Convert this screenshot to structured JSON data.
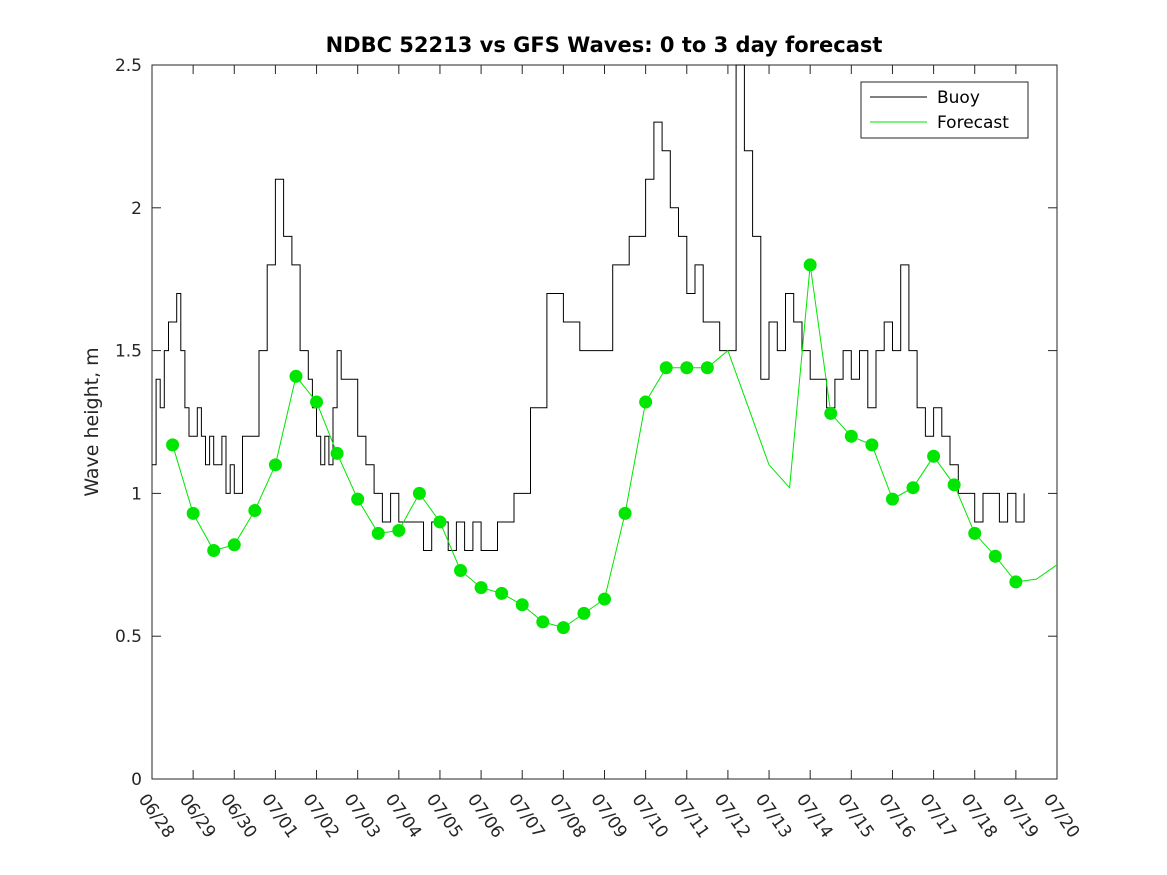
{
  "chart_data": {
    "type": "line",
    "title": "NDBC 52213 vs GFS Waves: 0 to 3 day forecast",
    "ylabel": "Wave height, m",
    "xlabel": "",
    "ylim": [
      0,
      2.5
    ],
    "xlim": [
      0,
      22
    ],
    "yticks": [
      0,
      0.5,
      1,
      1.5,
      2,
      2.5
    ],
    "ytick_labels": [
      "0",
      "0.5",
      "1",
      "1.5",
      "2",
      "2.5"
    ],
    "xtick_labels": [
      "06/28",
      "06/29",
      "06/30",
      "07/01",
      "07/02",
      "07/03",
      "07/04",
      "07/05",
      "07/06",
      "07/07",
      "07/08",
      "07/09",
      "07/10",
      "07/11",
      "07/12",
      "07/13",
      "07/14",
      "07/15",
      "07/16",
      "07/17",
      "07/18",
      "07/19",
      "07/20"
    ],
    "legend": {
      "position": "top-right",
      "entries": [
        {
          "label": "Buoy",
          "color": "#000000"
        },
        {
          "label": "Forecast",
          "color": "#00e600"
        }
      ]
    },
    "colors": {
      "buoy": "#000000",
      "forecast": "#00e600"
    },
    "series": [
      {
        "name": "Buoy",
        "x": [
          0,
          0.1,
          0.2,
          0.3,
          0.4,
          0.5,
          0.6,
          0.7,
          0.8,
          0.9,
          1.0,
          1.1,
          1.2,
          1.3,
          1.4,
          1.5,
          1.6,
          1.7,
          1.8,
          1.9,
          2.0,
          2.2,
          2.4,
          2.6,
          2.8,
          3.0,
          3.2,
          3.4,
          3.6,
          3.7,
          3.8,
          3.9,
          4.0,
          4.1,
          4.2,
          4.3,
          4.4,
          4.5,
          4.6,
          4.8,
          5.0,
          5.2,
          5.4,
          5.6,
          5.8,
          6.0,
          6.2,
          6.4,
          6.6,
          6.8,
          7.0,
          7.2,
          7.4,
          7.6,
          7.8,
          8.0,
          8.4,
          8.8,
          9.2,
          9.6,
          10.0,
          10.4,
          10.8,
          11.2,
          11.6,
          12.0,
          12.2,
          12.4,
          12.6,
          12.8,
          13.0,
          13.2,
          13.4,
          13.6,
          13.8,
          14.0,
          14.2,
          14.4,
          14.6,
          14.8,
          15.0,
          15.2,
          15.4,
          15.6,
          15.8,
          16.0,
          16.2,
          16.4,
          16.6,
          16.8,
          17.0,
          17.2,
          17.4,
          17.6,
          17.8,
          18.0,
          18.2,
          18.4,
          18.6,
          18.8,
          19.0,
          19.2,
          19.4,
          19.6,
          19.8,
          20.0,
          20.2,
          20.4,
          20.6,
          20.8,
          21.0,
          21.2
        ],
        "y": [
          1.1,
          1.4,
          1.3,
          1.5,
          1.6,
          1.6,
          1.7,
          1.5,
          1.3,
          1.2,
          1.2,
          1.3,
          1.2,
          1.1,
          1.2,
          1.1,
          1.1,
          1.2,
          1.0,
          1.1,
          1.0,
          1.2,
          1.2,
          1.5,
          1.8,
          2.1,
          1.9,
          1.8,
          1.5,
          1.5,
          1.4,
          1.3,
          1.2,
          1.1,
          1.2,
          1.1,
          1.3,
          1.5,
          1.4,
          1.4,
          1.2,
          1.1,
          1.0,
          0.9,
          1.0,
          0.9,
          0.9,
          0.9,
          0.8,
          0.9,
          0.9,
          0.8,
          0.9,
          0.8,
          0.9,
          0.8,
          0.9,
          1.0,
          1.3,
          1.7,
          1.6,
          1.5,
          1.5,
          1.8,
          1.9,
          2.1,
          2.3,
          2.2,
          2.0,
          1.9,
          1.7,
          1.8,
          1.6,
          1.6,
          1.5,
          1.5,
          2.5,
          2.2,
          1.9,
          1.4,
          1.6,
          1.5,
          1.7,
          1.6,
          1.5,
          1.4,
          1.4,
          1.3,
          1.4,
          1.5,
          1.4,
          1.5,
          1.3,
          1.5,
          1.6,
          1.5,
          1.8,
          1.5,
          1.3,
          1.2,
          1.3,
          1.2,
          1.1,
          1.0,
          1.0,
          0.9,
          1.0,
          1.0,
          0.9,
          1.0,
          0.9,
          1.0
        ]
      },
      {
        "name": "Forecast",
        "x": [
          0.5,
          1.0,
          1.5,
          2.0,
          2.5,
          3.0,
          3.5,
          4.0,
          4.5,
          5.0,
          5.5,
          6.0,
          6.5,
          7.0,
          7.5,
          8.0,
          8.5,
          9.0,
          9.5,
          10.0,
          10.5,
          11.0,
          11.5,
          12.0,
          12.5,
          13.0,
          13.5,
          14.0,
          14.5,
          15.0,
          15.5,
          16.0,
          16.5,
          17.0,
          17.5,
          18.0,
          18.5,
          19.0,
          19.5,
          20.0,
          20.5,
          21.0,
          21.5,
          22.0
        ],
        "y": [
          1.17,
          0.93,
          0.8,
          0.82,
          0.94,
          1.1,
          1.41,
          1.32,
          1.14,
          0.98,
          0.86,
          0.87,
          1.0,
          0.9,
          0.73,
          0.67,
          0.65,
          0.61,
          0.55,
          0.53,
          0.58,
          0.63,
          0.93,
          1.32,
          1.44,
          1.44,
          1.44,
          1.5,
          1.3,
          1.1,
          1.02,
          1.8,
          1.28,
          1.2,
          1.17,
          0.98,
          1.02,
          1.13,
          1.03,
          0.86,
          0.78,
          0.69,
          0.7,
          0.75
        ]
      }
    ],
    "forecast_markers": {
      "x": [
        0.5,
        1.0,
        1.5,
        2.0,
        2.5,
        3.0,
        3.5,
        4.0,
        4.5,
        5.0,
        5.5,
        6.0,
        6.5,
        7.0,
        7.5,
        8.0,
        8.5,
        9.0,
        9.5,
        10.0,
        10.5,
        11.0,
        11.5,
        12.0,
        12.5,
        13.0,
        13.5,
        16.0,
        16.5,
        17.0,
        17.5,
        18.0,
        18.5,
        19.0,
        19.5,
        20.0,
        20.5,
        21.0
      ],
      "y": [
        1.17,
        0.93,
        0.8,
        0.82,
        0.94,
        1.1,
        1.41,
        1.32,
        1.14,
        0.98,
        0.86,
        0.87,
        1.0,
        0.9,
        0.73,
        0.67,
        0.65,
        0.61,
        0.55,
        0.53,
        0.58,
        0.63,
        0.93,
        1.32,
        1.44,
        1.44,
        1.44,
        1.8,
        1.28,
        1.2,
        1.17,
        0.98,
        1.02,
        1.13,
        1.03,
        0.86,
        0.78,
        0.69
      ]
    }
  }
}
